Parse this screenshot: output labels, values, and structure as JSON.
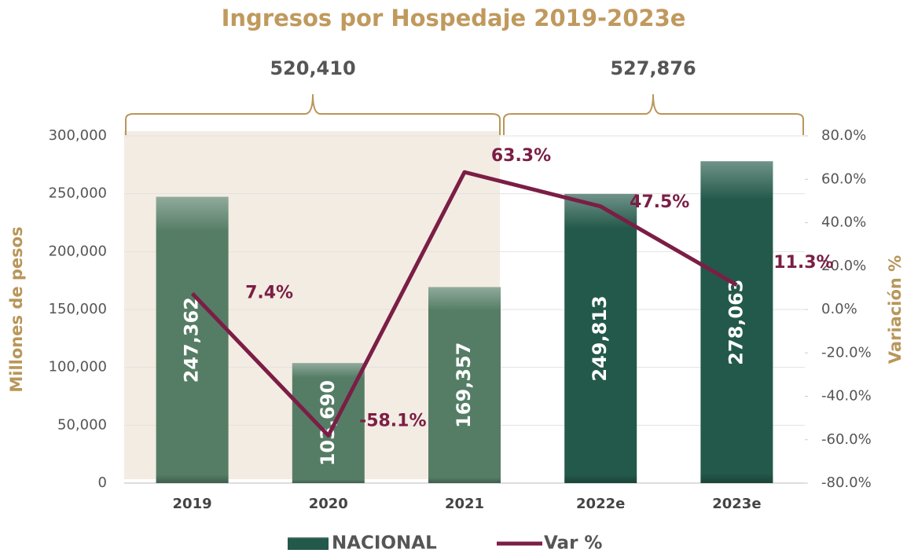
{
  "chart_data": {
    "type": "combo",
    "title": "Ingresos por Hospedaje 2019-2023e",
    "annotations": [
      "520,410",
      "527,876"
    ],
    "categories": [
      "2019",
      "2020",
      "2021",
      "2022e",
      "2023e"
    ],
    "series": [
      {
        "name": "NACIONAL",
        "type": "bar",
        "axis": "y",
        "colors": [
          "#557d66",
          "#557d66",
          "#557d66",
          "#23594a",
          "#23594a"
        ],
        "values": [
          247362,
          103690,
          169357,
          249813,
          278063
        ],
        "value_labels": [
          "247,362",
          "103,690",
          "169,357",
          "249,813",
          "278,063"
        ]
      },
      {
        "name": "Var %",
        "type": "line",
        "axis": "y2",
        "color": "#7b1e45",
        "values": [
          7.4,
          -58.1,
          63.3,
          47.5,
          11.3
        ],
        "value_labels": [
          "7.4%",
          "-58.1%",
          "63.3%",
          "47.5%",
          "11.3%"
        ]
      }
    ],
    "y_label": "Millones de pesos",
    "y2_label": "Variación %",
    "ylim": [
      0,
      300000
    ],
    "yticks": [
      0,
      {
        "value": 50000,
        "label": "50,000"
      },
      {
        "value": 100000,
        "label": "100,000"
      },
      {
        "value": 150000,
        "label": "150,000"
      },
      {
        "value": 200000,
        "label": "200,000"
      },
      {
        "value": 250000,
        "label": "250,000"
      },
      {
        "value": 300000,
        "label": "300,000"
      }
    ],
    "y2lim": [
      -80,
      80
    ],
    "y2ticks": [
      {
        "value": -80,
        "label": "-80.0%"
      },
      {
        "value": -60,
        "label": "-60.0%"
      },
      {
        "value": -40,
        "label": "-40.0%"
      },
      {
        "value": -20,
        "label": "-20.0%"
      },
      {
        "value": 0,
        "label": "0.0%"
      },
      {
        "value": 20,
        "label": "20.0%"
      },
      {
        "value": 40,
        "label": "40.0%"
      },
      {
        "value": 60,
        "label": "60.0%"
      },
      {
        "value": 80,
        "label": "80.0%"
      }
    ],
    "grid": true
  }
}
